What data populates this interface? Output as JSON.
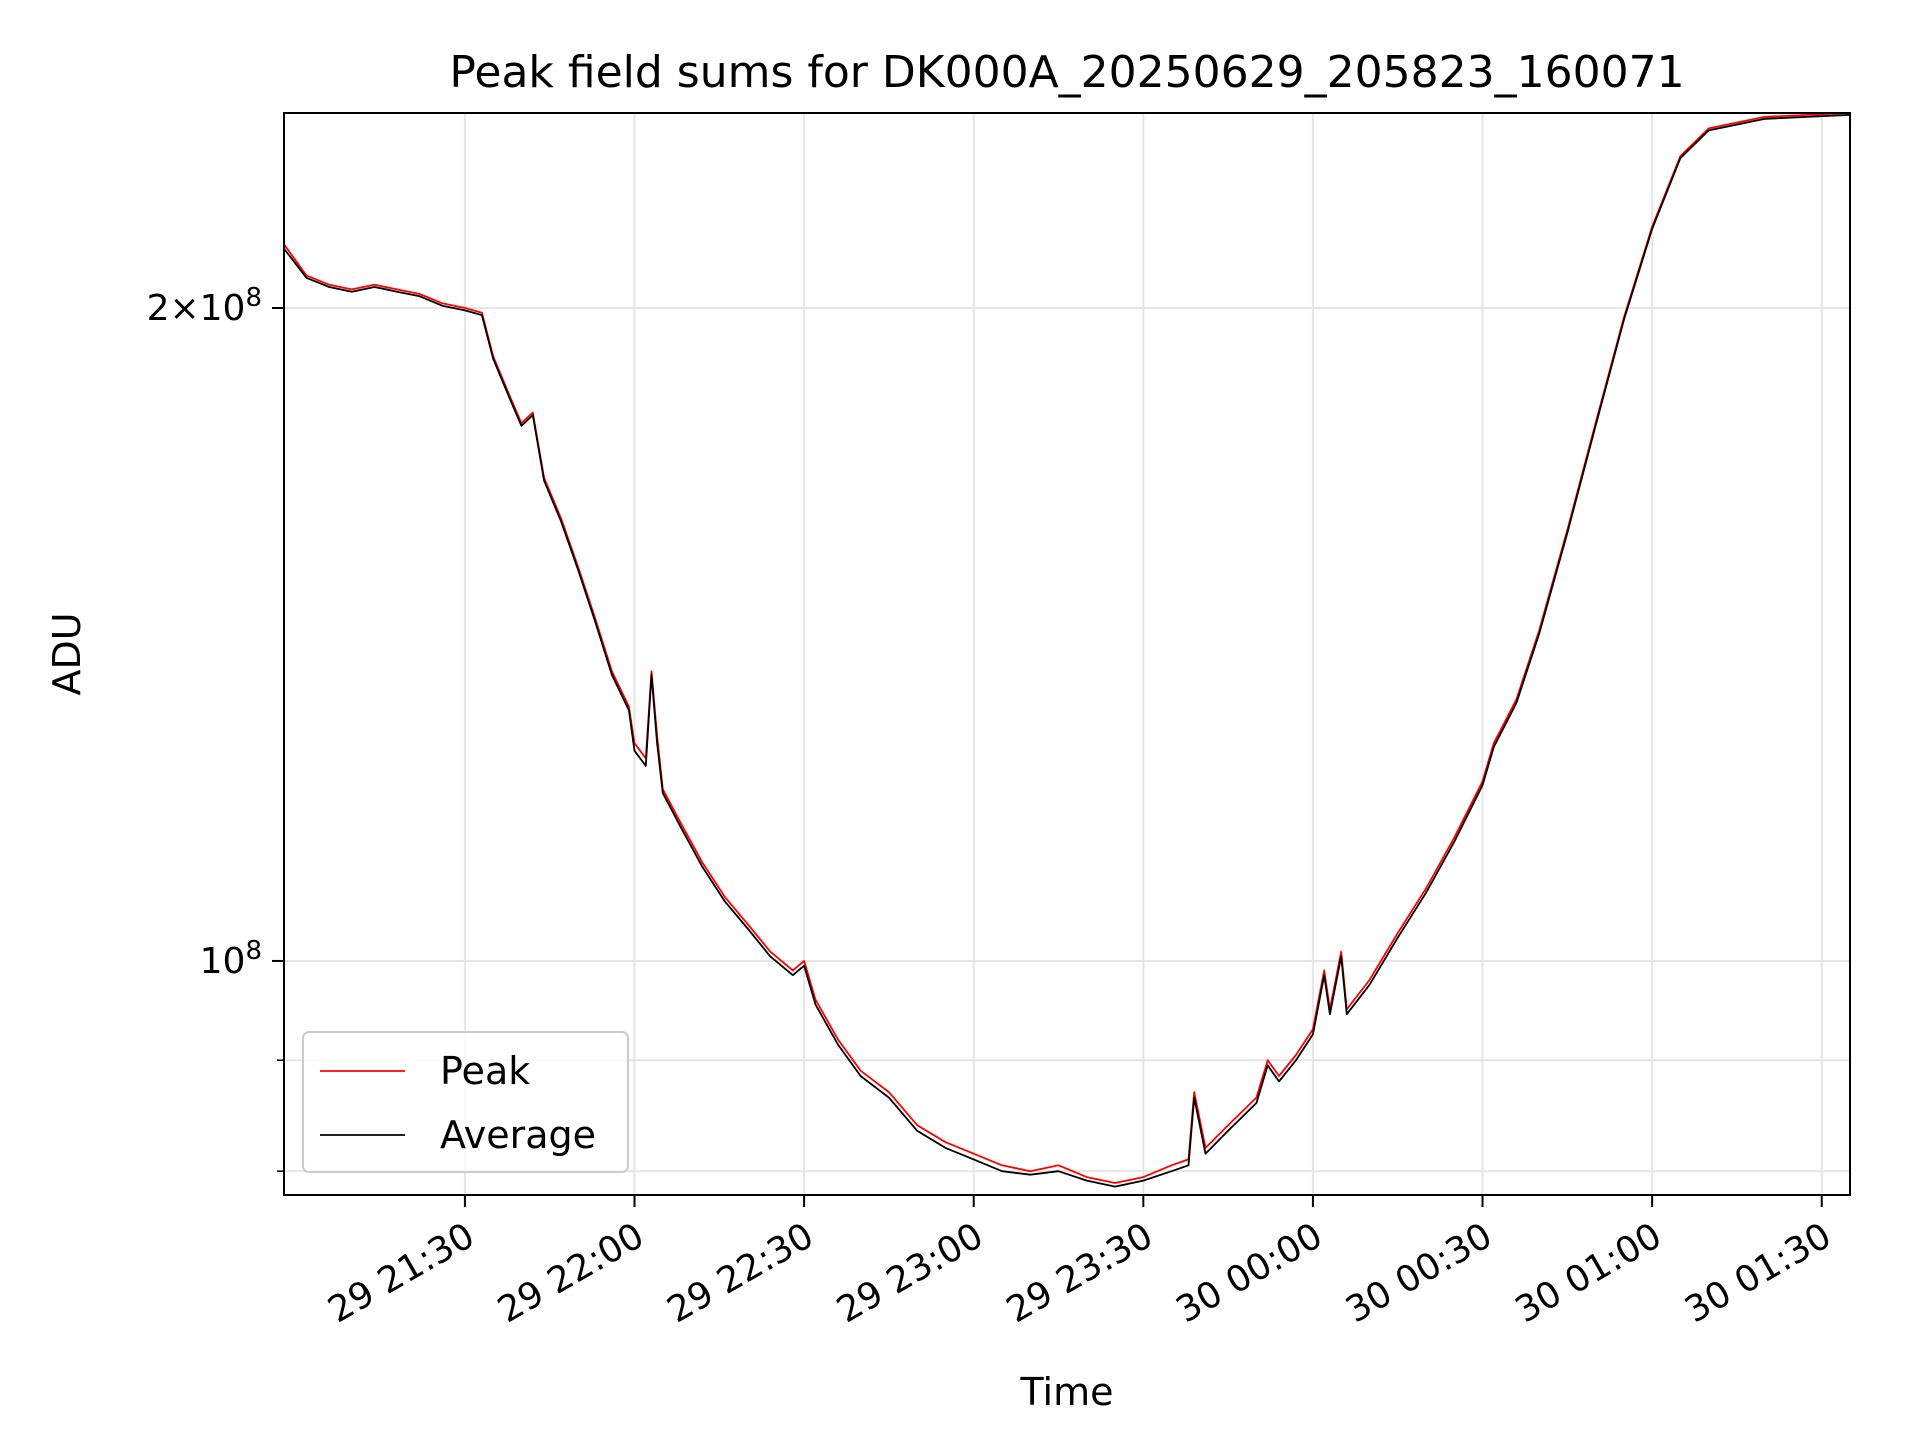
{
  "chart_data": {
    "type": "line",
    "title": "Peak field sums for DK000A_20250629_205823_160071",
    "xlabel": "Time",
    "ylabel": "ADU",
    "x_axis": {
      "kind": "datetime",
      "start": "2025-06-29 20:58",
      "end": "2025-06-30 01:35",
      "ticks": [
        {
          "t": "2025-06-29 21:30",
          "label": "29 21:30"
        },
        {
          "t": "2025-06-29 22:00",
          "label": "29 22:00"
        },
        {
          "t": "2025-06-29 22:30",
          "label": "29 22:30"
        },
        {
          "t": "2025-06-29 23:00",
          "label": "29 23:00"
        },
        {
          "t": "2025-06-29 23:30",
          "label": "29 23:30"
        },
        {
          "t": "2025-06-30 00:00",
          "label": "30 00:00"
        },
        {
          "t": "2025-06-30 00:30",
          "label": "30 00:30"
        },
        {
          "t": "2025-06-30 01:00",
          "label": "30 01:00"
        },
        {
          "t": "2025-06-30 01:30",
          "label": "30 01:30"
        }
      ]
    },
    "y_axis": {
      "scale": "log",
      "ylim": [
        78000000,
        246000000
      ],
      "major_ticks": [
        {
          "value": 100000000,
          "base": "10",
          "exp": "8"
        },
        {
          "value": 200000000,
          "coef": "2",
          "times": "×",
          "base": "10",
          "exp": "8"
        }
      ],
      "minor_ticks": [
        80000000,
        90000000
      ]
    },
    "grid": true,
    "legend_position": "lower-left",
    "series": [
      {
        "name": "Peak",
        "color": "#ff0000",
        "points": [
          [
            "2025-06-29 20:58",
            214000000
          ],
          [
            "2025-06-29 21:02",
            207000000
          ],
          [
            "2025-06-29 21:06",
            205000000
          ],
          [
            "2025-06-29 21:10",
            204000000
          ],
          [
            "2025-06-29 21:14",
            205000000
          ],
          [
            "2025-06-29 21:18",
            204000000
          ],
          [
            "2025-06-29 21:22",
            203000000
          ],
          [
            "2025-06-29 21:26",
            201000000
          ],
          [
            "2025-06-29 21:30",
            200000000
          ],
          [
            "2025-06-29 21:33",
            199000000
          ],
          [
            "2025-06-29 21:35",
            190000000
          ],
          [
            "2025-06-29 21:38",
            182000000
          ],
          [
            "2025-06-29 21:40",
            177000000
          ],
          [
            "2025-06-29 21:42",
            179000000
          ],
          [
            "2025-06-29 21:44",
            167000000
          ],
          [
            "2025-06-29 21:47",
            160000000
          ],
          [
            "2025-06-29 21:50",
            152000000
          ],
          [
            "2025-06-29 21:53",
            144000000
          ],
          [
            "2025-06-29 21:56",
            136000000
          ],
          [
            "2025-06-29 21:59",
            131000000
          ],
          [
            "2025-06-29 22:00",
            126000000
          ],
          [
            "2025-06-29 22:02",
            124000000
          ],
          [
            "2025-06-29 22:03",
            136000000
          ],
          [
            "2025-06-29 22:04",
            127000000
          ],
          [
            "2025-06-29 22:05",
            120000000
          ],
          [
            "2025-06-29 22:08",
            116000000
          ],
          [
            "2025-06-29 22:12",
            111000000
          ],
          [
            "2025-06-29 22:16",
            107000000
          ],
          [
            "2025-06-29 22:20",
            104000000
          ],
          [
            "2025-06-29 22:24",
            101000000
          ],
          [
            "2025-06-29 22:28",
            99000000
          ],
          [
            "2025-06-29 22:30",
            100000000
          ],
          [
            "2025-06-29 22:32",
            96000000
          ],
          [
            "2025-06-29 22:36",
            92000000
          ],
          [
            "2025-06-29 22:40",
            89000000
          ],
          [
            "2025-06-29 22:45",
            87000000
          ],
          [
            "2025-06-29 22:50",
            84000000
          ],
          [
            "2025-06-29 22:55",
            82500000
          ],
          [
            "2025-06-29 23:00",
            81500000
          ],
          [
            "2025-06-29 23:05",
            80500000
          ],
          [
            "2025-06-29 23:10",
            80000000
          ],
          [
            "2025-06-29 23:15",
            80500000
          ],
          [
            "2025-06-29 23:20",
            79500000
          ],
          [
            "2025-06-29 23:25",
            79000000
          ],
          [
            "2025-06-29 23:30",
            79500000
          ],
          [
            "2025-06-29 23:35",
            80500000
          ],
          [
            "2025-06-29 23:38",
            81000000
          ],
          [
            "2025-06-29 23:39",
            87000000
          ],
          [
            "2025-06-29 23:41",
            82000000
          ],
          [
            "2025-06-29 23:45",
            84000000
          ],
          [
            "2025-06-29 23:50",
            86500000
          ],
          [
            "2025-06-29 23:52",
            90000000
          ],
          [
            "2025-06-29 23:54",
            88500000
          ],
          [
            "2025-06-29 23:57",
            90500000
          ],
          [
            "2025-06-30 00:00",
            93000000
          ],
          [
            "2025-06-30 00:02",
            99000000
          ],
          [
            "2025-06-30 00:03",
            95000000
          ],
          [
            "2025-06-30 00:05",
            101000000
          ],
          [
            "2025-06-30 00:06",
            95000000
          ],
          [
            "2025-06-30 00:10",
            98000000
          ],
          [
            "2025-06-30 00:15",
            103000000
          ],
          [
            "2025-06-30 00:20",
            108000000
          ],
          [
            "2025-06-30 00:25",
            114000000
          ],
          [
            "2025-06-30 00:30",
            121000000
          ],
          [
            "2025-06-30 00:32",
            126000000
          ],
          [
            "2025-06-30 00:36",
            132000000
          ],
          [
            "2025-06-30 00:40",
            142000000
          ],
          [
            "2025-06-30 00:45",
            158000000
          ],
          [
            "2025-06-30 00:50",
            177000000
          ],
          [
            "2025-06-30 00:55",
            198000000
          ],
          [
            "2025-06-30 01:00",
            218000000
          ],
          [
            "2025-06-30 01:05",
            235000000
          ],
          [
            "2025-06-30 01:10",
            242000000
          ],
          [
            "2025-06-30 01:20",
            245000000
          ],
          [
            "2025-06-30 01:35",
            246000000
          ]
        ]
      },
      {
        "name": "Average",
        "color": "#000000",
        "points": [
          [
            "2025-06-29 20:58",
            213000000
          ],
          [
            "2025-06-29 21:02",
            206500000
          ],
          [
            "2025-06-29 21:06",
            204500000
          ],
          [
            "2025-06-29 21:10",
            203500000
          ],
          [
            "2025-06-29 21:14",
            204500000
          ],
          [
            "2025-06-29 21:18",
            203500000
          ],
          [
            "2025-06-29 21:22",
            202500000
          ],
          [
            "2025-06-29 21:26",
            200500000
          ],
          [
            "2025-06-29 21:30",
            199500000
          ],
          [
            "2025-06-29 21:33",
            198500000
          ],
          [
            "2025-06-29 21:35",
            189500000
          ],
          [
            "2025-06-29 21:38",
            181500000
          ],
          [
            "2025-06-29 21:40",
            176500000
          ],
          [
            "2025-06-29 21:42",
            178500000
          ],
          [
            "2025-06-29 21:44",
            166500000
          ],
          [
            "2025-06-29 21:47",
            159500000
          ],
          [
            "2025-06-29 21:50",
            151500000
          ],
          [
            "2025-06-29 21:53",
            143500000
          ],
          [
            "2025-06-29 21:56",
            135500000
          ],
          [
            "2025-06-29 21:59",
            130500000
          ],
          [
            "2025-06-29 22:00",
            125000000
          ],
          [
            "2025-06-29 22:02",
            123000000
          ],
          [
            "2025-06-29 22:03",
            135500000
          ],
          [
            "2025-06-29 22:04",
            126000000
          ],
          [
            "2025-06-29 22:05",
            119500000
          ],
          [
            "2025-06-29 22:08",
            115500000
          ],
          [
            "2025-06-29 22:12",
            110500000
          ],
          [
            "2025-06-29 22:16",
            106500000
          ],
          [
            "2025-06-29 22:20",
            103500000
          ],
          [
            "2025-06-29 22:24",
            100500000
          ],
          [
            "2025-06-29 22:28",
            98500000
          ],
          [
            "2025-06-29 22:30",
            99500000
          ],
          [
            "2025-06-29 22:32",
            95500000
          ],
          [
            "2025-06-29 22:36",
            91500000
          ],
          [
            "2025-06-29 22:40",
            88500000
          ],
          [
            "2025-06-29 22:45",
            86500000
          ],
          [
            "2025-06-29 22:50",
            83500000
          ],
          [
            "2025-06-29 22:55",
            82000000
          ],
          [
            "2025-06-29 23:00",
            81000000
          ],
          [
            "2025-06-29 23:05",
            80000000
          ],
          [
            "2025-06-29 23:10",
            79700000
          ],
          [
            "2025-06-29 23:15",
            80000000
          ],
          [
            "2025-06-29 23:20",
            79200000
          ],
          [
            "2025-06-29 23:25",
            78700000
          ],
          [
            "2025-06-29 23:30",
            79200000
          ],
          [
            "2025-06-29 23:35",
            80000000
          ],
          [
            "2025-06-29 23:38",
            80500000
          ],
          [
            "2025-06-29 23:39",
            86500000
          ],
          [
            "2025-06-29 23:41",
            81500000
          ],
          [
            "2025-06-29 23:45",
            83500000
          ],
          [
            "2025-06-29 23:50",
            86000000
          ],
          [
            "2025-06-29 23:52",
            89500000
          ],
          [
            "2025-06-29 23:54",
            88000000
          ],
          [
            "2025-06-29 23:57",
            90000000
          ],
          [
            "2025-06-30 00:00",
            92500000
          ],
          [
            "2025-06-30 00:02",
            98500000
          ],
          [
            "2025-06-30 00:03",
            94500000
          ],
          [
            "2025-06-30 00:05",
            100500000
          ],
          [
            "2025-06-30 00:06",
            94500000
          ],
          [
            "2025-06-30 00:10",
            97500000
          ],
          [
            "2025-06-30 00:15",
            102500000
          ],
          [
            "2025-06-30 00:20",
            107500000
          ],
          [
            "2025-06-30 00:25",
            113500000
          ],
          [
            "2025-06-30 00:30",
            120500000
          ],
          [
            "2025-06-30 00:32",
            125500000
          ],
          [
            "2025-06-30 00:36",
            131500000
          ],
          [
            "2025-06-30 00:40",
            141500000
          ],
          [
            "2025-06-30 00:45",
            157500000
          ],
          [
            "2025-06-30 00:50",
            176500000
          ],
          [
            "2025-06-30 00:55",
            197500000
          ],
          [
            "2025-06-30 01:00",
            217500000
          ],
          [
            "2025-06-30 01:05",
            234500000
          ],
          [
            "2025-06-30 01:10",
            241500000
          ],
          [
            "2025-06-30 01:20",
            244500000
          ],
          [
            "2025-06-30 01:35",
            245500000
          ]
        ]
      }
    ]
  }
}
